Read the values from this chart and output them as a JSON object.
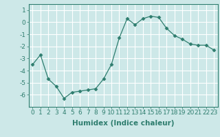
{
  "x": [
    0,
    1,
    2,
    3,
    4,
    5,
    6,
    7,
    8,
    9,
    10,
    11,
    12,
    13,
    14,
    15,
    16,
    17,
    18,
    19,
    20,
    21,
    22,
    23
  ],
  "y": [
    -3.5,
    -2.7,
    -4.7,
    -5.3,
    -6.3,
    -5.8,
    -5.7,
    -5.6,
    -5.5,
    -4.7,
    -3.5,
    -1.3,
    0.3,
    -0.2,
    0.3,
    0.5,
    0.4,
    -0.5,
    -1.1,
    -1.4,
    -1.8,
    -1.9,
    -1.9,
    -2.3
  ],
  "line_color": "#2e7d6e",
  "marker": "D",
  "marker_size": 2.5,
  "bg_color": "#cde8e8",
  "grid_color": "#ffffff",
  "xlabel": "Humidex (Indice chaleur)",
  "ylim": [
    -7,
    1.5
  ],
  "xlim": [
    -0.5,
    23.5
  ],
  "yticks": [
    1,
    0,
    -1,
    -2,
    -3,
    -4,
    -5,
    -6
  ],
  "ytick_labels": [
    "1",
    "0",
    "-1",
    "-2",
    "-3",
    "-4",
    "-5",
    "-6"
  ],
  "xticks": [
    0,
    1,
    2,
    3,
    4,
    5,
    6,
    7,
    8,
    9,
    10,
    11,
    12,
    13,
    14,
    15,
    16,
    17,
    18,
    19,
    20,
    21,
    22,
    23
  ],
  "tick_color": "#2e7d6e",
  "label_color": "#2e7d6e",
  "font_size": 6.5,
  "xlabel_fontsize": 7.5
}
